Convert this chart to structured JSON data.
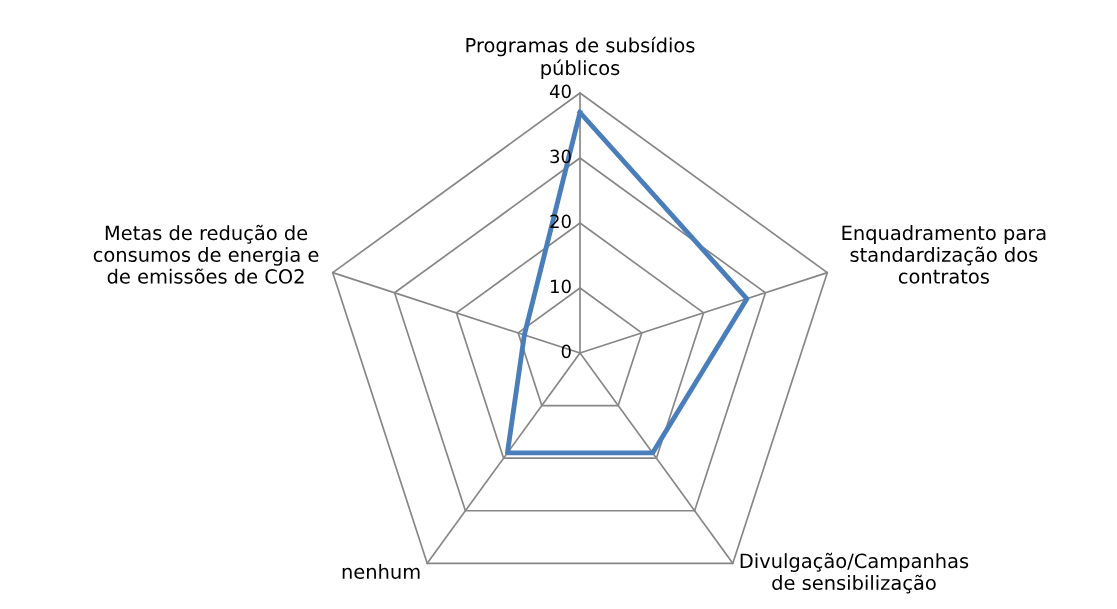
{
  "chart_data": {
    "type": "radar",
    "categories": [
      "Programas de subsídios públicos",
      "Enquadramento para standardização dos contratos",
      "Divulgação/Campanhas de sensibilização",
      "nenhum",
      "Metas de redução de consumos de energia e de emissões de CO2"
    ],
    "series": [
      {
        "color": "#4a7ebb",
        "values": [
          37,
          27,
          19,
          19,
          9
        ]
      }
    ],
    "ylim": [
      0,
      40
    ],
    "yticks": [
      0,
      10,
      20,
      30,
      40
    ],
    "grid": true,
    "marker": "none",
    "line_style": "solid"
  }
}
